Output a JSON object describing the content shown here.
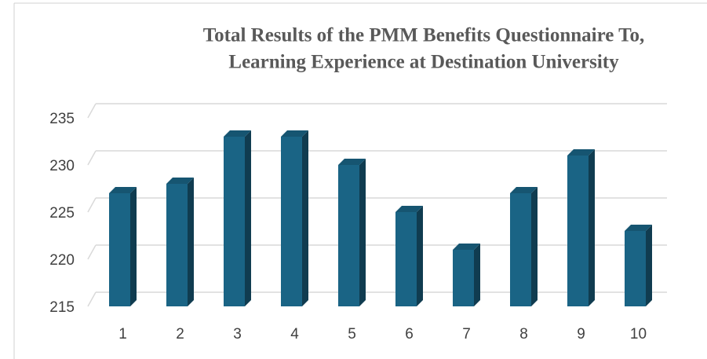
{
  "chart_data": {
    "type": "bar",
    "title": [
      "Total Results of the PMM Benefits Questionnaire To,",
      "Learning Experience at Destination University"
    ],
    "categories": [
      "1",
      "2",
      "3",
      "4",
      "5",
      "6",
      "7",
      "8",
      "9",
      "10"
    ],
    "values": [
      227,
      228,
      233,
      233,
      230,
      225,
      221,
      227,
      231,
      223
    ],
    "color": "#1a6485",
    "ylim": [
      215,
      235
    ],
    "yticks": [
      215,
      220,
      225,
      230,
      235
    ],
    "grid": true
  }
}
